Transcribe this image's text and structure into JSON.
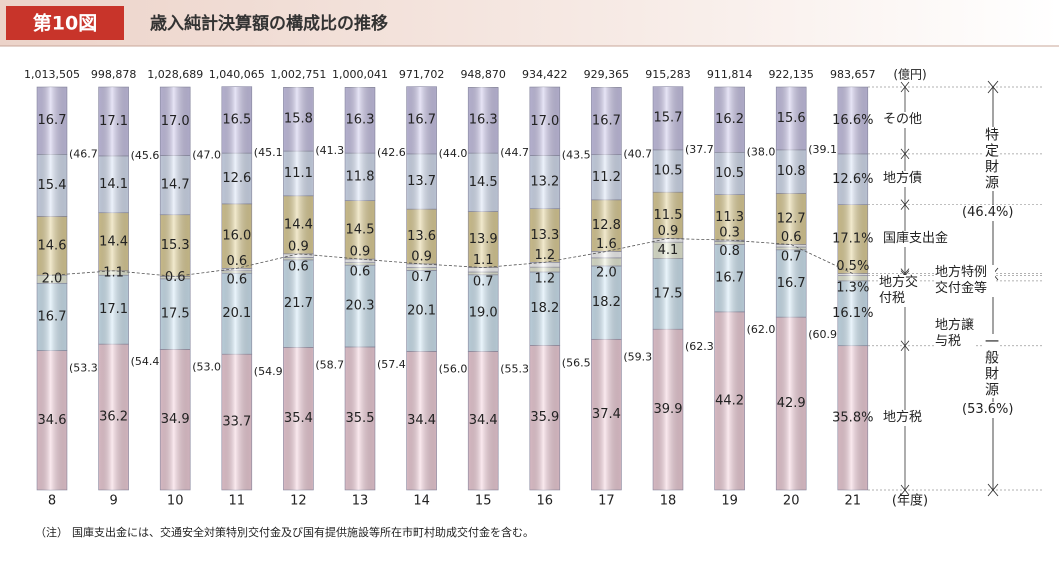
{
  "chart_data": {
    "type": "stacked_bar",
    "figure_label": "第10図",
    "title": "歳入純計決算額の構成比の推移",
    "unit_label": "(億円)",
    "x_label": "(年度)",
    "categories": [
      "8",
      "9",
      "10",
      "11",
      "12",
      "13",
      "14",
      "15",
      "16",
      "17",
      "18",
      "19",
      "20",
      "21"
    ],
    "ylim": [
      0,
      100
    ],
    "totals": {
      "values": [
        1013505,
        998878,
        1028689,
        1040065,
        1002751,
        1000041,
        971702,
        948870,
        934422,
        929365,
        915283,
        911814,
        922135,
        983657
      ],
      "value_labels": [
        "1,013,505",
        "998,878",
        "1,028,689",
        "1,040,065",
        "1,002,751",
        "1,000,041",
        "971,702",
        "948,870",
        "934,422",
        "929,365",
        "915,283",
        "911,814",
        "922,135",
        "983,657"
      ]
    },
    "series": [
      {
        "name": "地方税",
        "color": "#f5d3de",
        "values": [
          34.6,
          36.2,
          34.9,
          33.7,
          35.4,
          35.5,
          34.4,
          34.4,
          35.9,
          37.4,
          39.9,
          44.2,
          42.9,
          35.8
        ],
        "value_labels": [
          "34.6",
          "36.2",
          "34.9",
          "33.7",
          "35.4",
          "35.5",
          "34.4",
          "34.4",
          "35.9",
          "37.4",
          "39.9",
          "44.2",
          "42.9",
          "35.8%"
        ]
      },
      {
        "name": "地方交付税",
        "color": "#d4eaf8",
        "values": [
          16.7,
          17.1,
          17.5,
          20.1,
          21.7,
          20.3,
          20.1,
          19.0,
          18.2,
          18.2,
          17.5,
          16.7,
          16.7,
          16.1
        ],
        "value_labels": [
          "16.7",
          "17.1",
          "17.5",
          "20.1",
          "21.7",
          "20.3",
          "20.1",
          "19.0",
          "18.2",
          "18.2",
          "17.5",
          "16.7",
          "16.7",
          "16.1%"
        ]
      },
      {
        "name": "地方譲与税",
        "color": "#eef2dc",
        "values": [
          2.0,
          1.1,
          0.6,
          0.6,
          0.6,
          0.6,
          0.7,
          0.7,
          1.2,
          2.0,
          4.1,
          0.8,
          0.7,
          1.3
        ],
        "value_labels": [
          "2.0",
          "1.1",
          "0.6",
          "0.6",
          "0.6",
          "0.6",
          "0.7",
          "0.7",
          "1.2",
          "2.0",
          "4.1",
          "0.8",
          "0.7",
          "1.3%"
        ]
      },
      {
        "name": "地方特例交付金等",
        "color": "#ffffff",
        "values": [
          null,
          null,
          null,
          0.6,
          0.9,
          0.9,
          0.9,
          1.1,
          1.2,
          1.6,
          0.9,
          0.3,
          0.6,
          0.5
        ],
        "value_labels": [
          null,
          null,
          null,
          "0.6",
          "0.9",
          "0.9",
          "0.9",
          "1.1",
          "1.2",
          "1.6",
          "0.9",
          "0.3",
          "0.6",
          "0.5%"
        ]
      },
      {
        "name": "国庫支出金",
        "color": "#e4d49c",
        "values": [
          14.6,
          14.4,
          15.3,
          16.0,
          14.4,
          14.5,
          13.6,
          13.9,
          13.3,
          12.8,
          11.5,
          11.3,
          12.7,
          17.1
        ],
        "value_labels": [
          "14.6",
          "14.4",
          "15.3",
          "16.0",
          "14.4",
          "14.5",
          "13.6",
          "13.9",
          "13.3",
          "12.8",
          "11.5",
          "11.3",
          "12.7",
          "17.1%"
        ]
      },
      {
        "name": "地方債",
        "color": "#dae4f7",
        "values": [
          15.4,
          14.1,
          14.7,
          12.6,
          11.1,
          11.8,
          13.7,
          14.5,
          13.2,
          11.2,
          10.5,
          10.5,
          10.8,
          12.6
        ],
        "value_labels": [
          "15.4",
          "14.1",
          "14.7",
          "12.6",
          "11.1",
          "11.8",
          "13.7",
          "14.5",
          "13.2",
          "11.2",
          "10.5",
          "10.5",
          "10.8",
          "12.6%"
        ]
      },
      {
        "name": "その他",
        "color": "#cec9ec",
        "values": [
          16.7,
          17.1,
          17.0,
          16.5,
          15.8,
          16.3,
          16.7,
          16.3,
          17.0,
          16.7,
          15.7,
          16.2,
          15.6,
          16.6
        ],
        "value_labels": [
          "16.7",
          "17.1",
          "17.0",
          "16.5",
          "15.8",
          "16.3",
          "16.7",
          "16.3",
          "17.0",
          "16.7",
          "15.7",
          "16.2",
          "15.6",
          "16.6%"
        ]
      }
    ],
    "general_share": {
      "values": [
        53.3,
        54.4,
        53.0,
        54.9,
        58.7,
        57.4,
        56.0,
        55.3,
        56.5,
        59.3,
        62.3,
        62.0,
        60.9,
        null
      ],
      "value_labels": [
        "(53.3)",
        "(54.4)",
        "(53.0)",
        "(54.9)",
        "(58.7)",
        "(57.4)",
        "(56.0)",
        "(55.3)",
        "(56.5)",
        "(59.3)",
        "(62.3)",
        "(62.0)",
        "(60.9)",
        null
      ]
    },
    "specific_share": {
      "values": [
        46.7,
        45.6,
        47.0,
        45.1,
        41.3,
        42.6,
        44.0,
        44.7,
        43.5,
        40.7,
        37.7,
        38.0,
        39.1,
        null
      ],
      "value_labels": [
        "(46.7)",
        "(45.6)",
        "(47.0)",
        "(45.1)",
        "(41.3)",
        "(42.6)",
        "(44.0)",
        "(44.7)",
        "(43.5)",
        "(40.7)",
        "(37.7)",
        "(38.0)",
        "(39.1)",
        null
      ]
    },
    "annotations": {
      "specific": {
        "text": "特定財源",
        "value": 46.4,
        "label": "(46.4%)"
      },
      "general": {
        "text": "一般財源",
        "value": 53.6,
        "label": "(53.6%)"
      }
    },
    "note_label": "（注）",
    "note": "国庫支出金には、交通安全対策特別交付金及び国有提供施設等所在市町村助成交付金を含む。"
  }
}
